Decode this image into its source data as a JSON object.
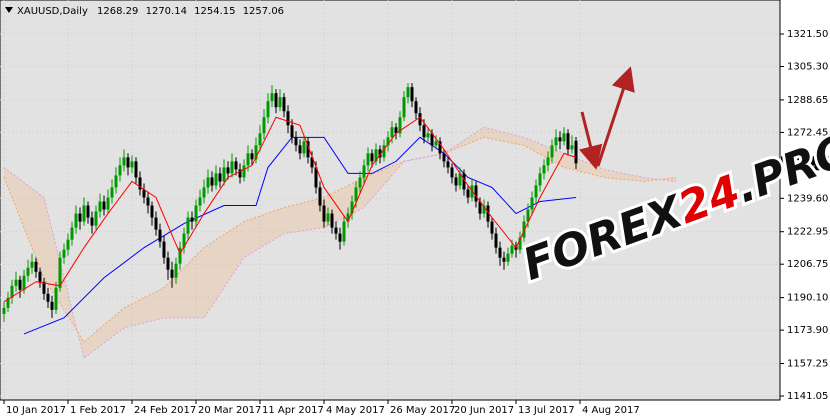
{
  "chart_data": {
    "type": "candlestick",
    "header": {
      "symbol": "XAUUSD,Daily",
      "ohlc": [
        1268.29,
        1270.14,
        1254.15,
        1257.06
      ]
    },
    "last_price": 1257.06,
    "watermark": [
      "FOREX",
      "24",
      ".PRO"
    ],
    "watermark_colors": [
      "#111111",
      "#e00000",
      "#111111"
    ],
    "up_color": "#009900",
    "down_color": "#000000",
    "grid": true,
    "xlim": [
      -1,
      194
    ],
    "ylim": [
      1139.06,
      1338.45
    ],
    "xticks": [
      {
        "value": 0,
        "label": "10 Jan 2017"
      },
      {
        "value": 16,
        "label": "1 Feb 2017"
      },
      {
        "value": 32,
        "label": "24 Feb 2017"
      },
      {
        "value": 48,
        "label": "20 Mar 2017"
      },
      {
        "value": 64,
        "label": "11 Apr 2017"
      },
      {
        "value": 80,
        "label": "4 May 2017"
      },
      {
        "value": 96,
        "label": "26 May 2017"
      },
      {
        "value": 112,
        "label": "20 Jun 2017"
      },
      {
        "value": 128,
        "label": "13 Jul 2017"
      },
      {
        "value": 144,
        "label": "4 Aug 2017"
      }
    ],
    "yticks": [
      {
        "value": 1321.5,
        "label": "1321.50"
      },
      {
        "value": 1305.3,
        "label": "1305.30"
      },
      1288.65,
      1272.45,
      {
        "value": 1239.6,
        "label": "1239.60"
      },
      1222.95,
      1206.75,
      {
        "value": 1190.1,
        "label": "1190.10"
      },
      {
        "value": 1173.9,
        "label": "1173.90"
      },
      1157.25,
      1141.05
    ],
    "candles": [
      [
        1182,
        1188,
        1178,
        1185
      ],
      [
        1185,
        1193,
        1183,
        1190
      ],
      [
        1190,
        1199,
        1187,
        1196
      ],
      [
        1196,
        1203,
        1193,
        1199
      ],
      [
        1199,
        1201,
        1190,
        1194
      ],
      [
        1194,
        1204,
        1192,
        1201
      ],
      [
        1201,
        1209,
        1198,
        1205
      ],
      [
        1205,
        1212,
        1202,
        1208
      ],
      [
        1208,
        1210,
        1200,
        1203
      ],
      [
        1203,
        1205,
        1195,
        1198
      ],
      [
        1198,
        1200,
        1189,
        1192
      ],
      [
        1192,
        1195,
        1185,
        1188
      ],
      [
        1188,
        1191,
        1180,
        1184
      ],
      [
        1184,
        1198,
        1182,
        1195
      ],
      [
        1195,
        1213,
        1193,
        1210
      ],
      [
        1210,
        1217,
        1207,
        1214
      ],
      [
        1214,
        1222,
        1211,
        1219
      ],
      [
        1219,
        1228,
        1216,
        1225
      ],
      [
        1225,
        1236,
        1222,
        1232
      ],
      [
        1232,
        1235,
        1224,
        1228
      ],
      [
        1228,
        1240,
        1226,
        1236
      ],
      [
        1236,
        1238,
        1227,
        1230
      ],
      [
        1230,
        1233,
        1222,
        1226
      ],
      [
        1226,
        1236,
        1224,
        1233
      ],
      [
        1233,
        1242,
        1230,
        1238
      ],
      [
        1238,
        1241,
        1231,
        1234
      ],
      [
        1234,
        1244,
        1232,
        1240
      ],
      [
        1240,
        1249,
        1237,
        1245
      ],
      [
        1245,
        1255,
        1242,
        1251
      ],
      [
        1251,
        1260,
        1248,
        1256
      ],
      [
        1256,
        1264,
        1253,
        1260
      ],
      [
        1260,
        1262,
        1251,
        1255
      ],
      [
        1255,
        1261,
        1252,
        1258
      ],
      [
        1258,
        1260,
        1247,
        1250
      ],
      [
        1250,
        1253,
        1241,
        1244
      ],
      [
        1244,
        1247,
        1237,
        1240
      ],
      [
        1240,
        1243,
        1232,
        1236
      ],
      [
        1236,
        1238,
        1226,
        1230
      ],
      [
        1230,
        1233,
        1221,
        1224
      ],
      [
        1224,
        1227,
        1215,
        1218
      ],
      [
        1218,
        1221,
        1207,
        1210
      ],
      [
        1210,
        1213,
        1199,
        1204
      ],
      [
        1204,
        1208,
        1195,
        1200
      ],
      [
        1200,
        1210,
        1197,
        1207
      ],
      [
        1207,
        1218,
        1204,
        1215
      ],
      [
        1215,
        1225,
        1212,
        1222
      ],
      [
        1222,
        1233,
        1219,
        1230
      ],
      [
        1230,
        1233,
        1224,
        1228
      ],
      [
        1228,
        1239,
        1225,
        1236
      ],
      [
        1236,
        1244,
        1233,
        1240
      ],
      [
        1240,
        1249,
        1237,
        1245
      ],
      [
        1245,
        1254,
        1242,
        1250
      ],
      [
        1250,
        1253,
        1243,
        1246
      ],
      [
        1246,
        1256,
        1244,
        1252
      ],
      [
        1252,
        1255,
        1245,
        1248
      ],
      [
        1248,
        1259,
        1246,
        1255
      ],
      [
        1255,
        1258,
        1249,
        1252
      ],
      [
        1252,
        1262,
        1250,
        1258
      ],
      [
        1258,
        1260,
        1251,
        1254
      ],
      [
        1254,
        1257,
        1247,
        1250
      ],
      [
        1250,
        1259,
        1248,
        1256
      ],
      [
        1256,
        1266,
        1253,
        1262
      ],
      [
        1262,
        1264,
        1256,
        1259
      ],
      [
        1259,
        1270,
        1257,
        1266
      ],
      [
        1266,
        1276,
        1263,
        1272
      ],
      [
        1272,
        1284,
        1269,
        1280
      ],
      [
        1280,
        1292,
        1277,
        1288
      ],
      [
        1288,
        1296,
        1285,
        1292
      ],
      [
        1292,
        1294,
        1282,
        1285
      ],
      [
        1285,
        1294,
        1283,
        1290
      ],
      [
        1290,
        1292,
        1280,
        1283
      ],
      [
        1283,
        1286,
        1272,
        1276
      ],
      [
        1276,
        1279,
        1267,
        1270
      ],
      [
        1270,
        1273,
        1263,
        1266
      ],
      [
        1266,
        1269,
        1259,
        1262
      ],
      [
        1262,
        1271,
        1260,
        1268
      ],
      [
        1268,
        1270,
        1257,
        1260
      ],
      [
        1260,
        1263,
        1252,
        1255
      ],
      [
        1255,
        1258,
        1242,
        1245
      ],
      [
        1245,
        1248,
        1233,
        1236
      ],
      [
        1236,
        1239,
        1225,
        1228
      ],
      [
        1228,
        1235,
        1226,
        1232
      ],
      [
        1232,
        1234,
        1222,
        1225
      ],
      [
        1225,
        1228,
        1219,
        1222
      ],
      [
        1222,
        1225,
        1214,
        1218
      ],
      [
        1218,
        1231,
        1216,
        1228
      ],
      [
        1228,
        1235,
        1225,
        1232
      ],
      [
        1232,
        1241,
        1229,
        1238
      ],
      [
        1238,
        1248,
        1235,
        1245
      ],
      [
        1245,
        1253,
        1242,
        1250
      ],
      [
        1250,
        1259,
        1247,
        1256
      ],
      [
        1256,
        1265,
        1253,
        1262
      ],
      [
        1262,
        1264,
        1255,
        1258
      ],
      [
        1258,
        1267,
        1256,
        1264
      ],
      [
        1264,
        1266,
        1257,
        1260
      ],
      [
        1260,
        1269,
        1258,
        1266
      ],
      [
        1266,
        1273,
        1263,
        1270
      ],
      [
        1270,
        1278,
        1267,
        1275
      ],
      [
        1275,
        1277,
        1269,
        1272
      ],
      [
        1272,
        1283,
        1270,
        1280
      ],
      [
        1280,
        1293,
        1278,
        1290
      ],
      [
        1290,
        1297,
        1287,
        1295
      ],
      [
        1295,
        1297,
        1285,
        1288
      ],
      [
        1288,
        1290,
        1279,
        1282
      ],
      [
        1282,
        1285,
        1273,
        1276
      ],
      [
        1276,
        1279,
        1267,
        1270
      ],
      [
        1270,
        1275,
        1268,
        1272
      ],
      [
        1272,
        1274,
        1263,
        1266
      ],
      [
        1266,
        1271,
        1264,
        1268
      ],
      [
        1268,
        1270,
        1259,
        1262
      ],
      [
        1262,
        1264,
        1255,
        1258
      ],
      [
        1258,
        1260,
        1252,
        1255
      ],
      [
        1255,
        1257,
        1247,
        1250
      ],
      [
        1250,
        1252,
        1243,
        1246
      ],
      [
        1246,
        1255,
        1244,
        1252
      ],
      [
        1252,
        1254,
        1241,
        1244
      ],
      [
        1244,
        1246,
        1237,
        1240
      ],
      [
        1240,
        1249,
        1238,
        1246
      ],
      [
        1246,
        1248,
        1235,
        1238
      ],
      [
        1238,
        1240,
        1229,
        1232
      ],
      [
        1232,
        1239,
        1230,
        1236
      ],
      [
        1236,
        1238,
        1225,
        1228
      ],
      [
        1228,
        1230,
        1219,
        1222
      ],
      [
        1222,
        1225,
        1212,
        1215
      ],
      [
        1215,
        1218,
        1206,
        1210
      ],
      [
        1210,
        1213,
        1204,
        1208
      ],
      [
        1208,
        1215,
        1206,
        1212
      ],
      [
        1212,
        1219,
        1210,
        1216
      ],
      [
        1216,
        1218,
        1210,
        1214
      ],
      [
        1214,
        1223,
        1212,
        1220
      ],
      [
        1220,
        1231,
        1218,
        1228
      ],
      [
        1228,
        1237,
        1225,
        1234
      ],
      [
        1234,
        1243,
        1231,
        1240
      ],
      [
        1240,
        1249,
        1237,
        1246
      ],
      [
        1246,
        1255,
        1243,
        1252
      ],
      [
        1252,
        1259,
        1249,
        1256
      ],
      [
        1256,
        1263,
        1253,
        1260
      ],
      [
        1260,
        1269,
        1257,
        1266
      ],
      [
        1266,
        1274,
        1263,
        1270
      ],
      [
        1270,
        1273,
        1264,
        1268
      ],
      [
        1268,
        1275,
        1266,
        1272
      ],
      [
        1272,
        1274,
        1261,
        1264
      ],
      [
        1264,
        1271,
        1262,
        1266
      ],
      [
        1268.29,
        1270.14,
        1254.15,
        1257.06
      ]
    ],
    "tenkan": {
      "color": "#ff0000",
      "x": [
        0,
        8,
        14,
        20,
        26,
        32,
        38,
        44,
        50,
        56,
        62,
        68,
        74,
        80,
        86,
        92,
        98,
        104,
        110,
        116,
        122,
        128,
        134,
        140,
        143
      ],
      "values": [
        1188,
        1198,
        1196,
        1215,
        1232,
        1248,
        1240,
        1212,
        1232,
        1250,
        1256,
        1280,
        1276,
        1245,
        1228,
        1256,
        1272,
        1280,
        1264,
        1246,
        1230,
        1215,
        1240,
        1262,
        1260
      ]
    },
    "kijun": {
      "color": "#0000ff",
      "x": [
        5,
        15,
        25,
        35,
        45,
        55,
        63,
        66,
        72,
        80,
        86,
        92,
        98,
        104,
        110,
        116,
        122,
        128,
        134,
        143
      ],
      "values": [
        1172,
        1180,
        1200,
        1215,
        1227,
        1236,
        1236,
        1255,
        1270,
        1270,
        1252,
        1252,
        1258,
        1270,
        1262,
        1250,
        1245,
        1232,
        1238,
        1240
      ]
    },
    "cloud": {
      "x": [
        0,
        10,
        20,
        30,
        40,
        50,
        60,
        70,
        80,
        90,
        100,
        110,
        120,
        130,
        140,
        150,
        160,
        168
      ],
      "span_a": {
        "color": "#f4a460",
        "values": [
          1250,
          1200,
          1168,
          1185,
          1195,
          1215,
          1228,
          1235,
          1240,
          1250,
          1258,
          1262,
          1270,
          1266,
          1255,
          1250,
          1248,
          1250
        ]
      },
      "span_b": {
        "color": "#dda0dd",
        "values": [
          1255,
          1240,
          1160,
          1175,
          1180,
          1180,
          1210,
          1222,
          1225,
          1235,
          1258,
          1262,
          1275,
          1270,
          1262,
          1254,
          1250,
          1248
        ]
      }
    }
  }
}
